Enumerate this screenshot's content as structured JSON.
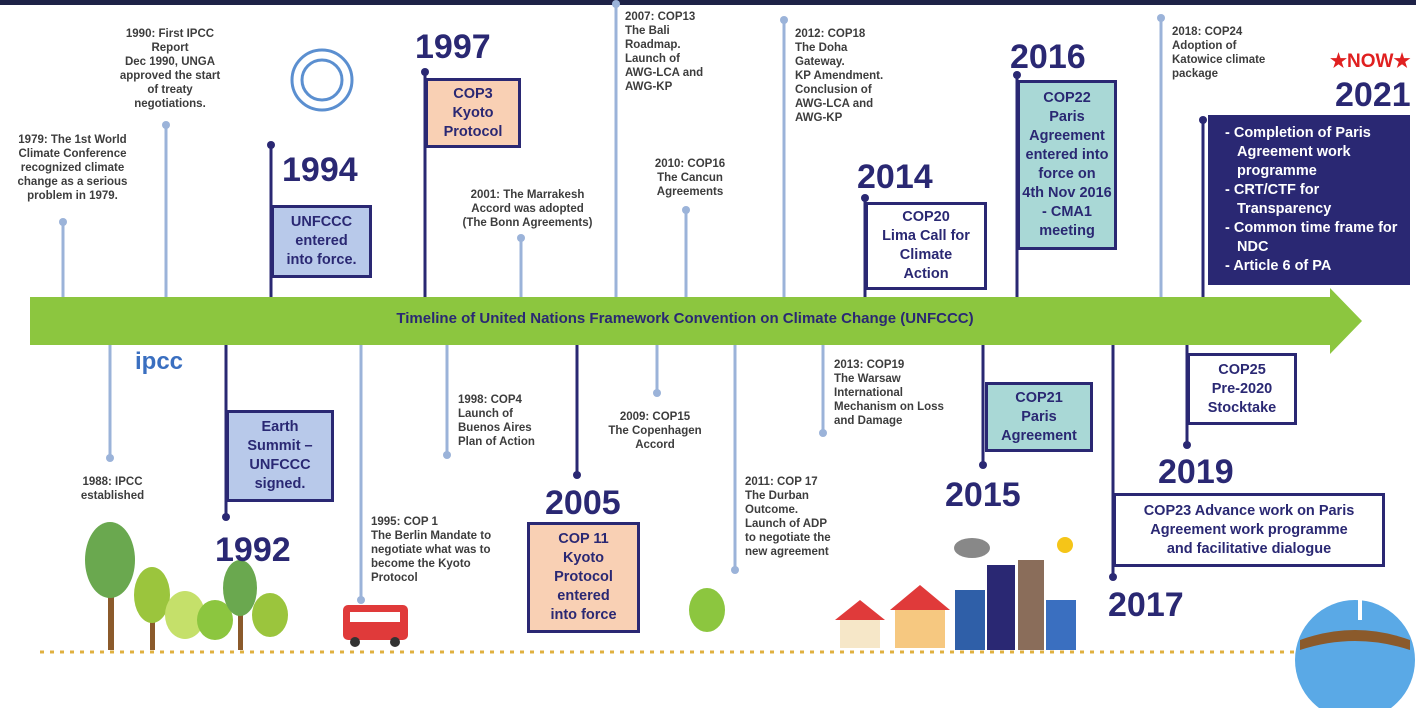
{
  "title": "Timeline of United Nations Framework Convention on Climate Change (UNFCCC)",
  "ipcc_logo": "ipcc",
  "notes": [
    {
      "lines": [
        "1979: The 1st World",
        "Climate Conference",
        "recognized climate",
        "change as a serious",
        "problem in 1979."
      ]
    },
    {
      "lines": [
        "1990: First IPCC",
        "Report",
        "Dec 1990, UNGA",
        "approved the start",
        "of treaty",
        "negotiations."
      ]
    },
    {
      "lines": [
        "2001: The Marrakesh",
        "Accord was adopted",
        "(The Bonn Agreements)"
      ]
    },
    {
      "lines": [
        "2007: COP13",
        "The Bali",
        "Roadmap.",
        "Launch of",
        "AWG-LCA and",
        "AWG-KP"
      ]
    },
    {
      "lines": [
        "2010: COP16",
        "The Cancun",
        "Agreements"
      ]
    },
    {
      "lines": [
        "2012: COP18",
        "The Doha",
        "Gateway.",
        "KP Amendment.",
        "Conclusion of",
        "AWG-LCA and",
        "AWG-KP"
      ]
    },
    {
      "lines": [
        "2018: COP24",
        "Adoption of",
        "Katowice climate",
        "package"
      ]
    },
    {
      "lines": [
        "1988: IPCC",
        "established"
      ]
    },
    {
      "lines": [
        "1995: COP 1",
        "The Berlin Mandate to",
        "negotiate what was to",
        "become the Kyoto",
        "Protocol"
      ]
    },
    {
      "lines": [
        "1998: COP4",
        "Launch of",
        "Buenos Aires",
        "Plan of Action"
      ]
    },
    {
      "lines": [
        "2009: COP15",
        "The Copenhagen",
        "Accord"
      ]
    },
    {
      "lines": [
        "2011: COP 17",
        "The Durban",
        "Outcome.",
        "Launch of ADP",
        "to negotiate the",
        "new agreement"
      ]
    },
    {
      "lines": [
        "2013: COP19",
        "The Warsaw",
        "International",
        "Mechanism on Loss",
        "and Damage"
      ]
    }
  ],
  "milestones": [
    {
      "year": "1994",
      "box": [
        "UNFCCC",
        "entered",
        "into force."
      ]
    },
    {
      "year": "1997",
      "box": [
        "COP3",
        "Kyoto",
        "Protocol"
      ]
    },
    {
      "year": "2014",
      "box": [
        "COP20",
        "Lima Call for",
        "Climate",
        "Action"
      ]
    },
    {
      "year": "2016",
      "box": [
        "COP22",
        "Paris",
        "Agreement",
        "entered into",
        "force on",
        "4th Nov 2016",
        "- CMA1",
        "meeting"
      ]
    },
    {
      "year": "2021",
      "badge": "★NOW★",
      "items": [
        "- Completion of Paris Agreement work programme",
        "- CRT/CTF for Transparency",
        "- Common time frame for NDC",
        "- Article 6 of PA"
      ]
    },
    {
      "year": "1992",
      "box": [
        "Earth",
        "Summit –",
        "UNFCCC",
        "signed."
      ]
    },
    {
      "year": "2005",
      "box": [
        "COP 11",
        "Kyoto",
        "Protocol",
        "entered",
        "into force"
      ]
    },
    {
      "year": "2015",
      "box": [
        "COP21",
        "Paris",
        "Agreement"
      ]
    },
    {
      "year": "2017",
      "box": [
        "COP23 Advance work on Paris",
        "Agreement work programme",
        "and facilitative dialogue"
      ]
    },
    {
      "year": "2019",
      "box": [
        "COP25",
        "Pre-2020",
        "Stocktake"
      ]
    }
  ]
}
